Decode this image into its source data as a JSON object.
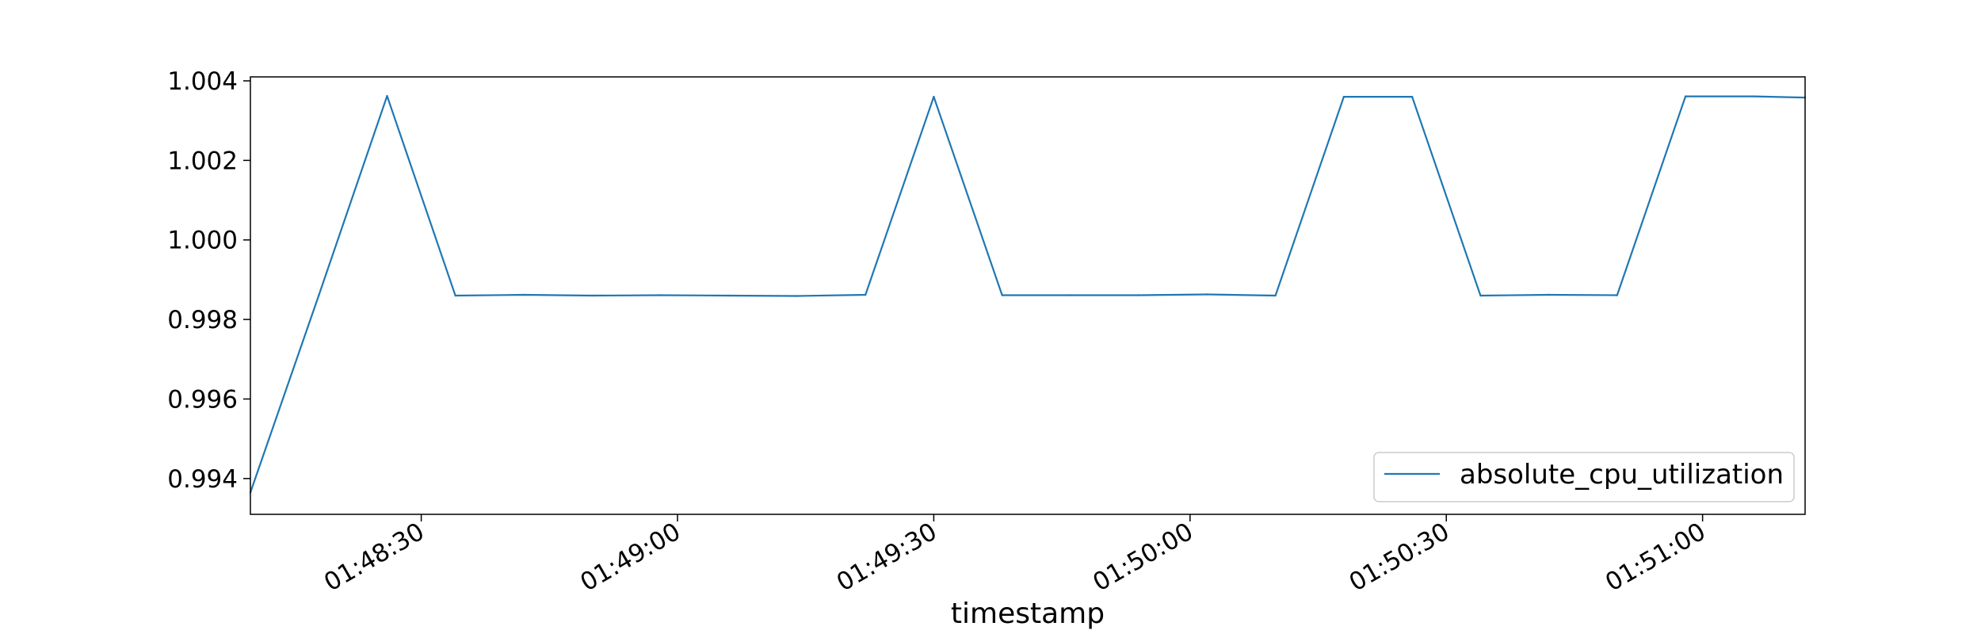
{
  "chart_data": {
    "type": "line",
    "title": "",
    "xlabel": "timestamp",
    "ylabel": "",
    "x_start": "01:48:10",
    "x_end": "01:51:12",
    "xlim": [
      "01:48:10",
      "01:51:12"
    ],
    "ylim": [
      0.9931,
      1.0041
    ],
    "xticks": [
      "01:48:30",
      "01:49:00",
      "01:49:30",
      "01:50:00",
      "01:50:30",
      "01:51:00"
    ],
    "yticks": [
      0.994,
      0.996,
      0.998,
      1.0,
      1.002,
      1.004
    ],
    "ytick_labels": [
      "0.994",
      "0.996",
      "0.998",
      "1.000",
      "1.002",
      "1.004"
    ],
    "grid": false,
    "legend": {
      "position": "lower-right"
    },
    "series": [
      {
        "name": "absolute_cpu_utilization",
        "color": "#1f77b4",
        "points": [
          {
            "x": "01:48:10",
            "y": 0.99365
          },
          {
            "x": "01:48:18",
            "y": 0.9986
          },
          {
            "x": "01:48:26",
            "y": 1.00362
          },
          {
            "x": "01:48:34",
            "y": 0.9986
          },
          {
            "x": "01:48:42",
            "y": 0.99862
          },
          {
            "x": "01:48:50",
            "y": 0.9986
          },
          {
            "x": "01:48:58",
            "y": 0.99861
          },
          {
            "x": "01:49:06",
            "y": 0.9986
          },
          {
            "x": "01:49:14",
            "y": 0.99859
          },
          {
            "x": "01:49:22",
            "y": 0.99862
          },
          {
            "x": "01:49:30",
            "y": 1.0036
          },
          {
            "x": "01:49:38",
            "y": 0.99861
          },
          {
            "x": "01:49:46",
            "y": 0.99861
          },
          {
            "x": "01:49:54",
            "y": 0.99861
          },
          {
            "x": "01:50:02",
            "y": 0.99863
          },
          {
            "x": "01:50:10",
            "y": 0.9986
          },
          {
            "x": "01:50:18",
            "y": 1.0036
          },
          {
            "x": "01:50:26",
            "y": 1.0036
          },
          {
            "x": "01:50:34",
            "y": 0.9986
          },
          {
            "x": "01:50:42",
            "y": 0.99862
          },
          {
            "x": "01:50:50",
            "y": 0.99861
          },
          {
            "x": "01:50:58",
            "y": 1.00361
          },
          {
            "x": "01:51:06",
            "y": 1.00361
          },
          {
            "x": "01:51:12",
            "y": 1.00358
          }
        ]
      }
    ]
  }
}
